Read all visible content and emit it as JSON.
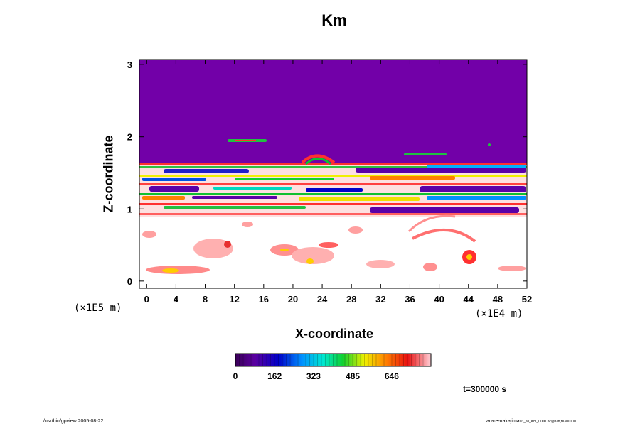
{
  "chart_data": {
    "type": "heatmap",
    "title": "Km",
    "xlabel": "X-coordinate",
    "ylabel": "Z-coordinate",
    "x_unit": "(×1E4 m)",
    "y_unit": "(×1E5 m)",
    "x_ticks": [
      "0",
      "4",
      "8",
      "12",
      "16",
      "20",
      "24",
      "28",
      "32",
      "36",
      "40",
      "44",
      "48",
      "52"
    ],
    "y_ticks": [
      "0",
      "1",
      "2",
      "3"
    ],
    "xlim": [
      -1,
      52
    ],
    "ylim": [
      -0.1,
      3.07
    ],
    "colorbar": {
      "labels": [
        "0",
        "162",
        "323",
        "485",
        "646"
      ],
      "range": [
        0,
        808
      ],
      "colormap": "rainbow (purple-blue-cyan-green-yellow-red-white)"
    },
    "annotation": "t=300000 s",
    "regions": [
      {
        "z_range": [
          1.68,
          3.07
        ],
        "description": "uniform Km near 0 (purple)"
      },
      {
        "z_range": [
          0.9,
          1.68
        ],
        "description": "layered turbulent bands of high/mixed Km"
      },
      {
        "z_range": [
          -0.1,
          0.9
        ],
        "description": "mostly white (high) with red patches"
      }
    ],
    "colors": {
      "low": "#6e00a8",
      "high": "#ffffff"
    }
  },
  "footer": {
    "left": "/usr/bin/gpview 2005-08-22",
    "right_main": "arare-nakajima",
    "right_small": "03_all_Km_0000.nc@Km,t=300000"
  }
}
